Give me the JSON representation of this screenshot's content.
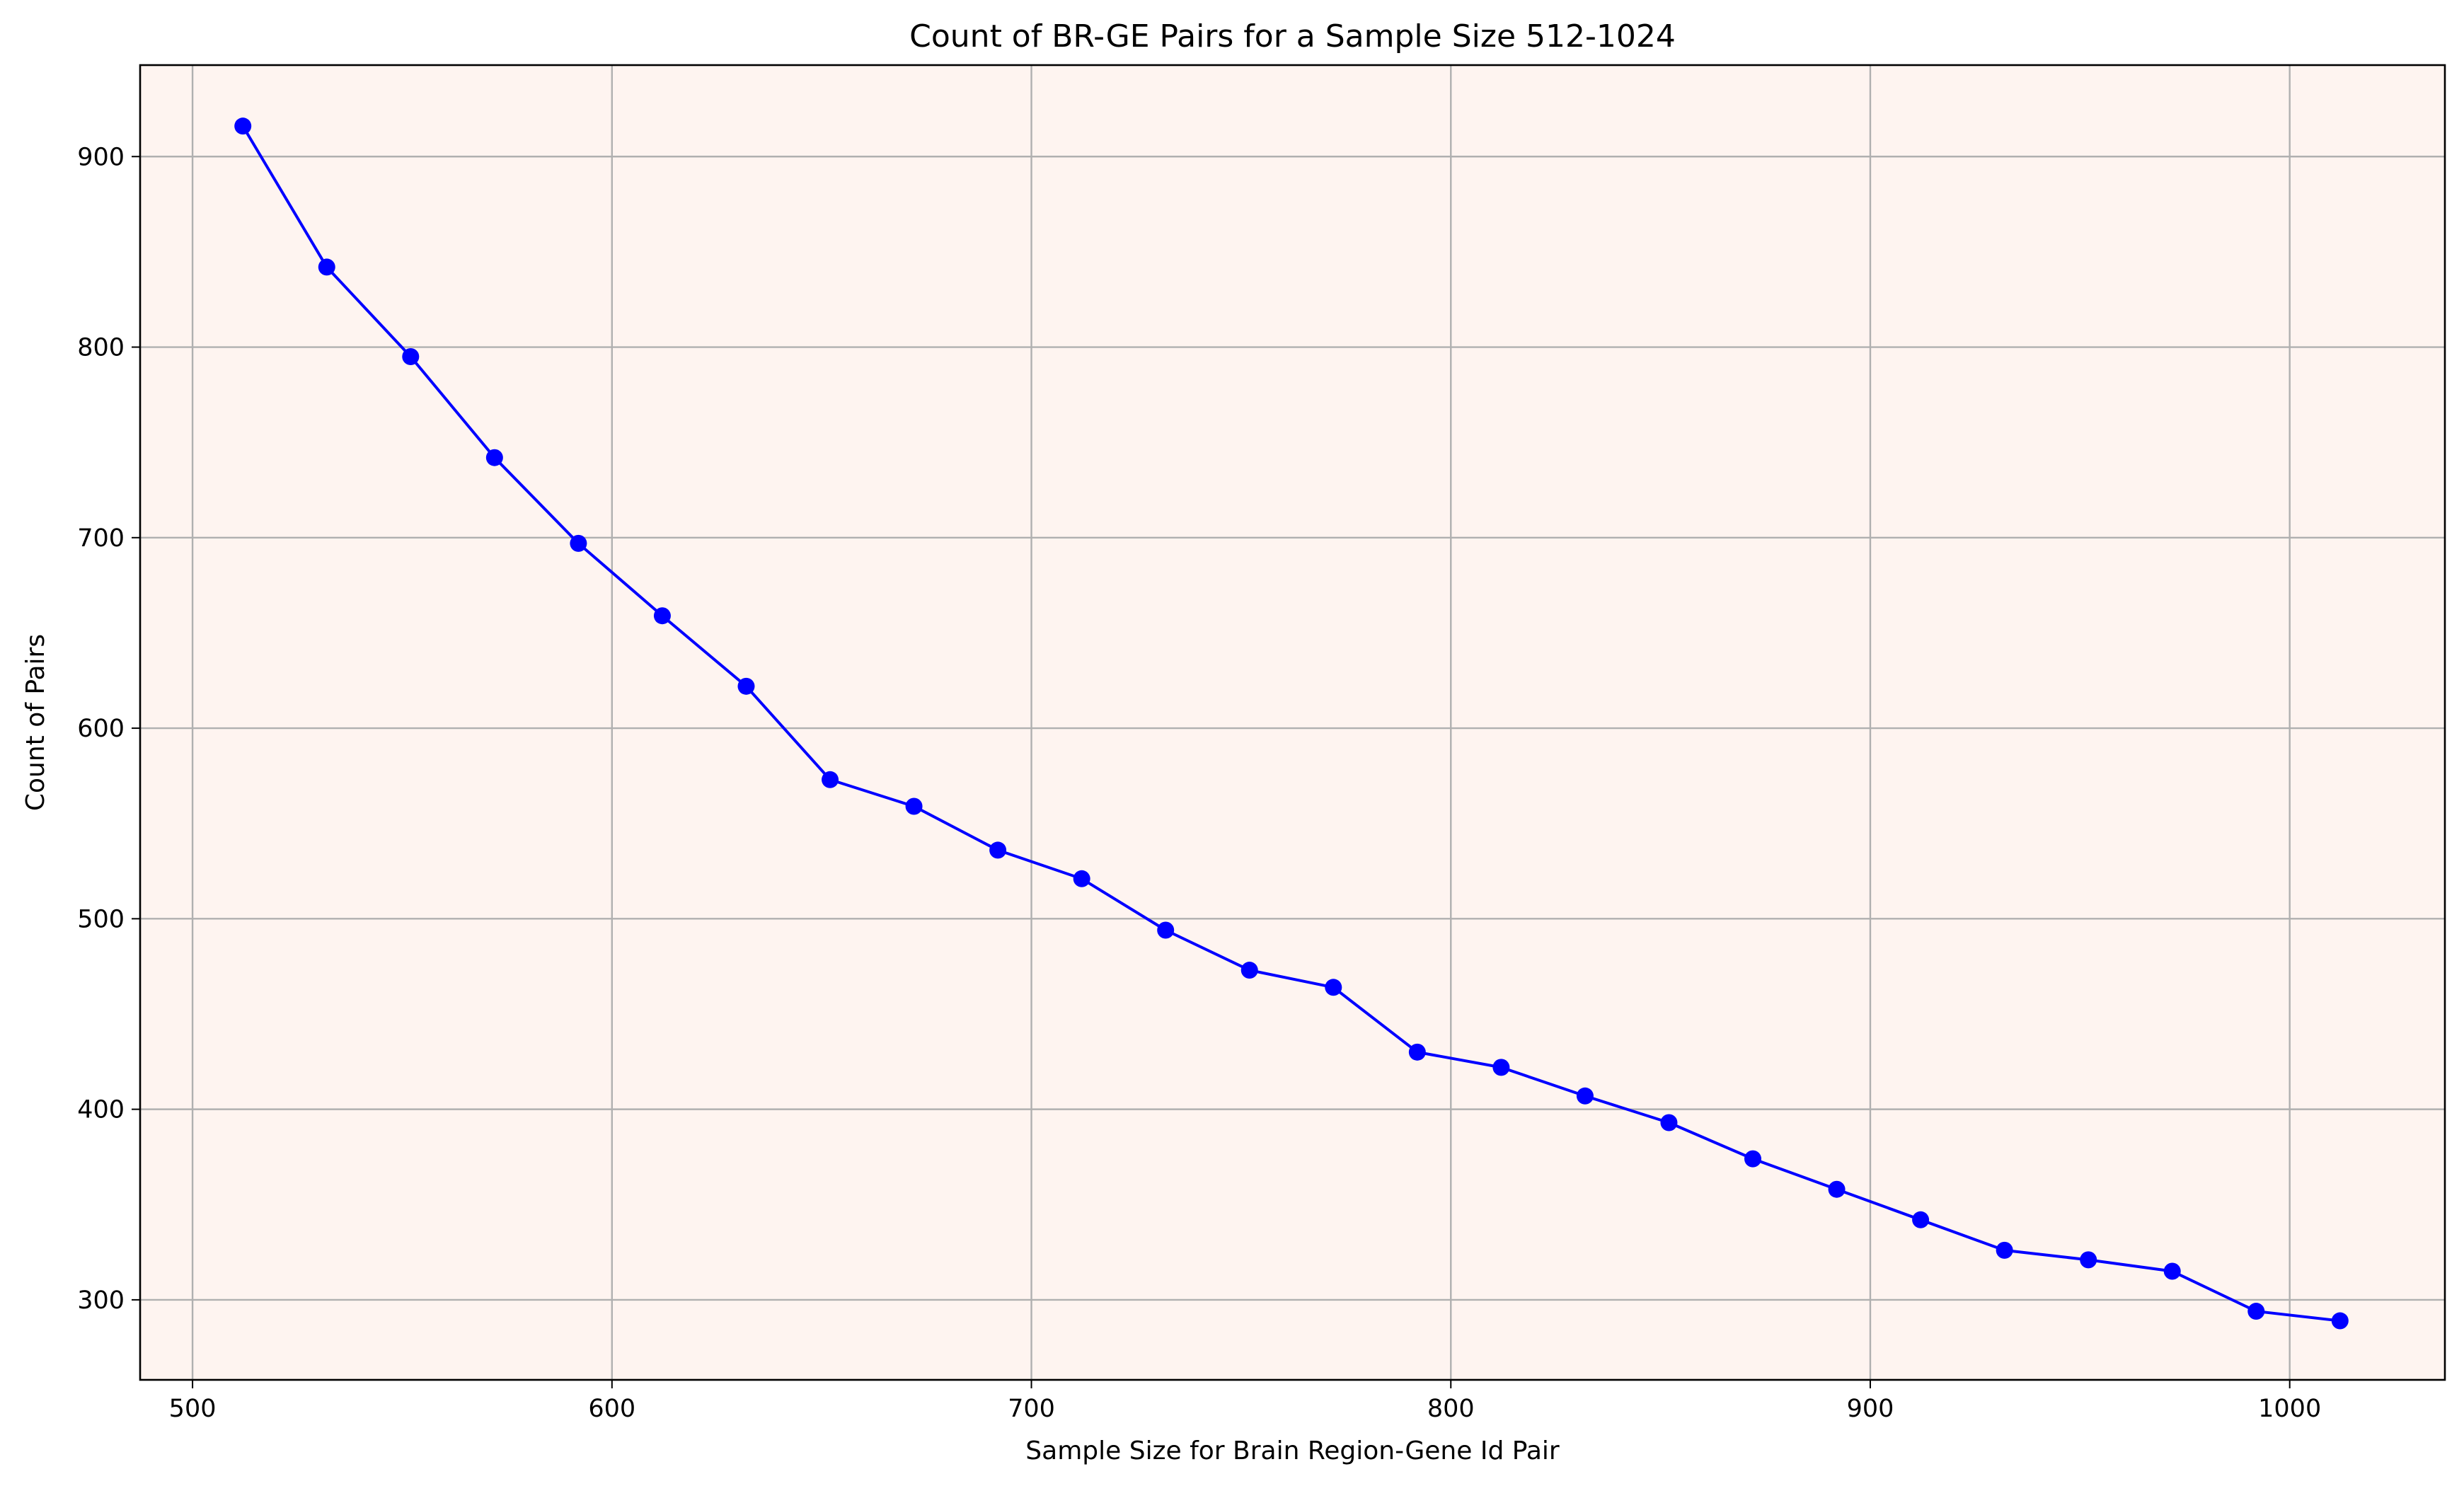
{
  "chart_data": {
    "type": "line",
    "title": "Count of BR-GE Pairs for a Sample Size 512-1024",
    "xlabel": "Sample Size for Brain Region-Gene Id Pair",
    "ylabel": "Count of Pairs",
    "xlim": [
      487.5,
      1037
    ],
    "ylim": [
      258,
      948
    ],
    "xticks": [
      500,
      600,
      700,
      800,
      900,
      1000
    ],
    "yticks": [
      300,
      400,
      500,
      600,
      700,
      800,
      900
    ],
    "grid": true,
    "legend": "none",
    "series": [
      {
        "color": "#0000ff",
        "marker": "circle",
        "x": [
          512,
          532,
          552,
          572,
          592,
          612,
          632,
          652,
          672,
          692,
          712,
          732,
          752,
          772,
          792,
          812,
          832,
          852,
          872,
          892,
          912,
          932,
          952,
          972,
          992,
          1012
        ],
        "y": [
          916,
          842,
          795,
          742,
          697,
          659,
          622,
          573,
          559,
          536,
          521,
          494,
          473,
          464,
          430,
          422,
          407,
          393,
          374,
          358,
          342,
          326,
          321,
          315,
          294,
          289
        ]
      }
    ]
  },
  "colors": {
    "plot_background": "#fef4f0",
    "grid": "#b0b0b0",
    "series_line": "#0000ff",
    "axes_frame": "#000000"
  }
}
